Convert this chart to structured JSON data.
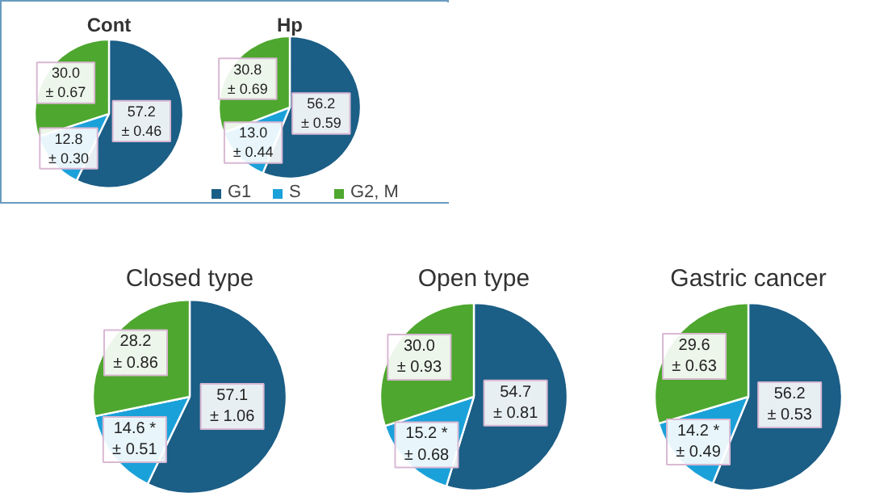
{
  "chart_data": [
    {
      "type": "pie",
      "title": "Cont",
      "categories": [
        null,
        null,
        null
      ],
      "colors": [
        "#1b5e86",
        "#1ba1d9",
        "#4ea72e"
      ],
      "values": [
        57.2,
        12.8,
        30.0
      ],
      "value_labels": [
        "57.2\n± 0.46",
        "12.8\n± 0.30",
        "30.0\n± 0.67"
      ]
    },
    {
      "type": "pie",
      "title": "Hp",
      "categories": [
        "G1",
        "S",
        "G2, M"
      ],
      "colors": [
        "#1b5e86",
        "#1ba1d9",
        "#4ea72e"
      ],
      "values": [
        56.2,
        13.0,
        30.8
      ],
      "value_labels": [
        "56.2\n± 0.59",
        "13.0\n± 0.44",
        "30.8\n± 0.69"
      ],
      "legend": "bottom"
    },
    {
      "type": "pie",
      "title": "Closed type",
      "categories": [
        null,
        null,
        null
      ],
      "colors": [
        "#1b5e86",
        "#1ba1d9",
        "#4ea72e"
      ],
      "values": [
        57.1,
        14.6,
        28.2
      ],
      "value_labels": [
        "57.1\n± 1.06",
        "14.6 *\n± 0.51",
        "28.2\n± 0.86"
      ]
    },
    {
      "type": "pie",
      "title": "Open type",
      "categories": [
        null,
        null,
        null
      ],
      "colors": [
        "#1b5e86",
        "#1ba1d9",
        "#4ea72e"
      ],
      "values": [
        54.7,
        15.2,
        30.0
      ],
      "value_labels": [
        "54.7\n± 0.81",
        "15.2 *\n± 0.68",
        "30.0\n± 0.93"
      ]
    },
    {
      "type": "pie",
      "title": "Gastric cancer",
      "categories": [
        null,
        null,
        null
      ],
      "colors": [
        "#1b5e86",
        "#1ba1d9",
        "#4ea72e"
      ],
      "values": [
        56.2,
        14.2,
        29.6
      ],
      "value_labels": [
        "56.2\n± 0.53",
        "14.2 *\n± 0.49",
        "29.6\n± 0.63"
      ]
    }
  ]
}
